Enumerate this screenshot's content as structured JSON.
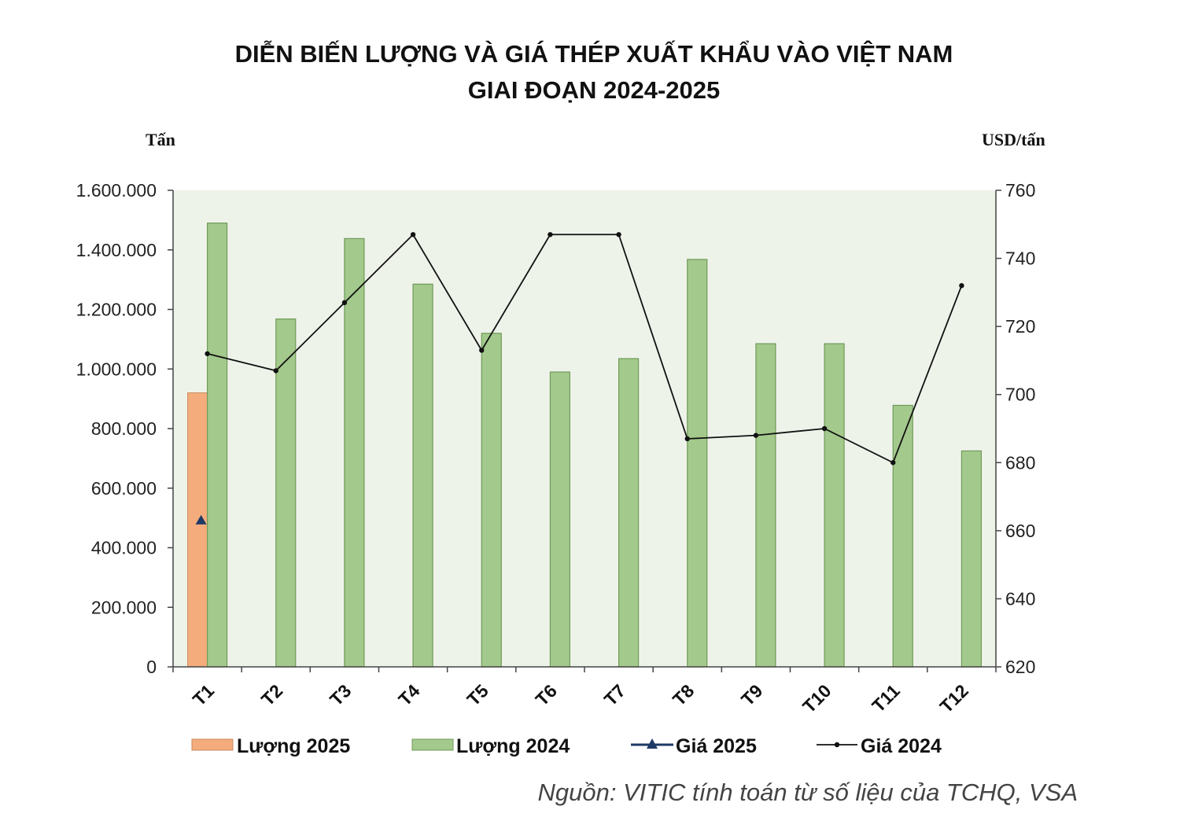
{
  "chart_data": {
    "type": "bar",
    "title_line1": "DIỄN BIẾN LƯỢNG VÀ GIÁ THÉP XUẤT KHẨU VÀO VIỆT NAM",
    "title_line2": "GIAI ĐOẠN 2024-2025",
    "y_left_unit": "Tấn",
    "y_right_unit": "USD/tấn",
    "categories": [
      "T1",
      "T2",
      "T3",
      "T4",
      "T5",
      "T6",
      "T7",
      "T8",
      "T9",
      "T10",
      "T11",
      "T12"
    ],
    "y_left_range": [
      0,
      1600000
    ],
    "y_left_ticks": [
      "0",
      "200.000",
      "400.000",
      "600.000",
      "800.000",
      "1.000.000",
      "1.200.000",
      "1.400.000",
      "1.600.000"
    ],
    "y_right_range": [
      620,
      760
    ],
    "y_right_ticks": [
      "620",
      "640",
      "660",
      "680",
      "700",
      "720",
      "740",
      "760"
    ],
    "series": [
      {
        "name": "Lượng 2025",
        "kind": "bar",
        "axis": "left",
        "color": "#f4ac7c",
        "values": [
          920000,
          null,
          null,
          null,
          null,
          null,
          null,
          null,
          null,
          null,
          null,
          null
        ]
      },
      {
        "name": "Lượng 2024",
        "kind": "bar",
        "axis": "left",
        "color": "#a3c98c",
        "values": [
          1490000,
          1168000,
          1438000,
          1285000,
          1120000,
          990000,
          1035000,
          1368000,
          1085000,
          1085000,
          878000,
          725000
        ]
      },
      {
        "name": "Giá 2025",
        "kind": "line",
        "axis": "right",
        "color": "#1f3a66",
        "marker": "triangle",
        "values": [
          663,
          null,
          null,
          null,
          null,
          null,
          null,
          null,
          null,
          null,
          null,
          null
        ]
      },
      {
        "name": "Giá 2024",
        "kind": "line",
        "axis": "right",
        "color": "#111111",
        "marker": "dot",
        "values": [
          712,
          707,
          727,
          747,
          713,
          747,
          747,
          687,
          688,
          690,
          680,
          732
        ]
      }
    ],
    "plot_background": "#eef3ea",
    "legend_position": "bottom",
    "grid": false
  },
  "source_note": "Nguồn: VITIC tính toán từ số liệu của TCHQ, VSA"
}
